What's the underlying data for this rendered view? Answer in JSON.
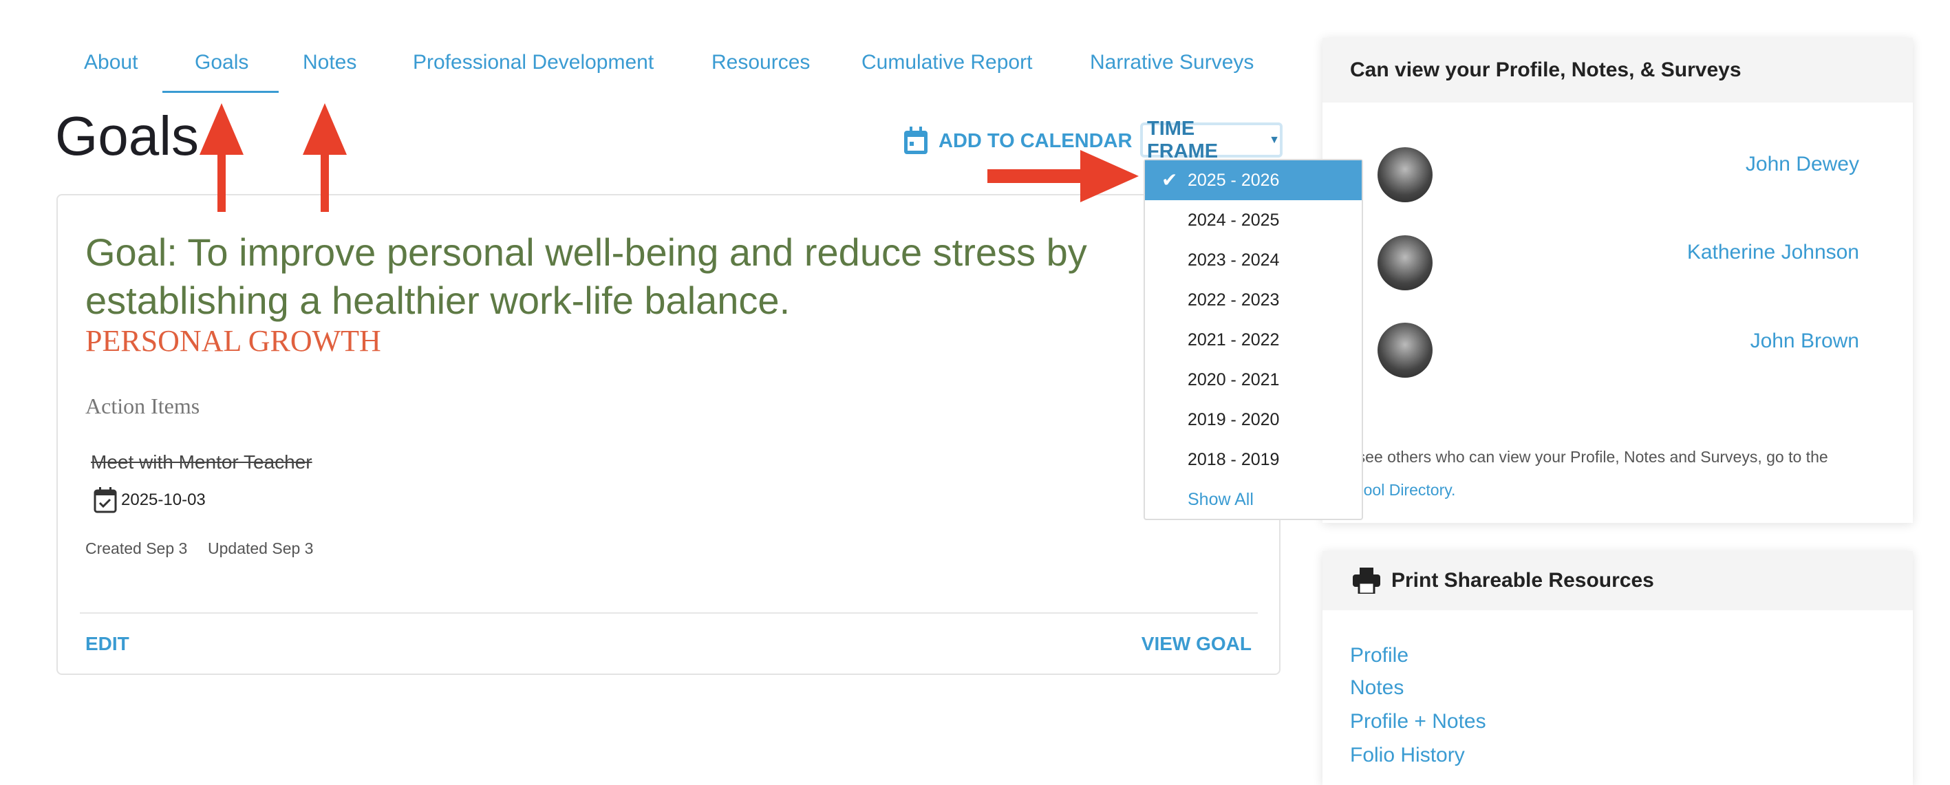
{
  "tabs": [
    {
      "label": "About"
    },
    {
      "label": "Goals",
      "active": true
    },
    {
      "label": "Notes"
    },
    {
      "label": "Professional Development"
    },
    {
      "label": "Resources"
    },
    {
      "label": "Cumulative Report"
    },
    {
      "label": "Narrative Surveys"
    }
  ],
  "page_title": "Goals",
  "toolbar": {
    "add_to_calendar": "ADD TO CALENDAR",
    "time_frame": "TIME FRAME"
  },
  "time_frame_options": [
    "2025 - 2026",
    "2024 - 2025",
    "2023 - 2024",
    "2022 - 2023",
    "2021 - 2022",
    "2020 - 2021",
    "2019 - 2020",
    "2018 - 2019"
  ],
  "time_frame_selected": "2025 - 2026",
  "show_all": "Show All",
  "goal": {
    "title": "Goal: To improve personal well-being and reduce stress by establishing a healthier work-life balance.",
    "category": "PERSONAL GROWTH",
    "action_items_label": "Action Items",
    "action_item": "Meet with Mentor Teacher",
    "action_item_date": "2025-10-03",
    "created": "Created Sep 3",
    "updated": "Updated Sep 3",
    "edit": "EDIT",
    "view": "VIEW GOAL"
  },
  "viewers": {
    "title": "Can view your Profile, Notes, & Surveys",
    "people": [
      "John Dewey",
      "Katherine Johnson",
      "John Brown"
    ],
    "note": "To see others who can view your Profile, Notes and Surveys, go to the",
    "note_link": "School Directory"
  },
  "print": {
    "title": "Print Shareable Resources",
    "links": [
      "Profile",
      "Notes",
      "Profile + Notes",
      "Folio History"
    ]
  },
  "colors": {
    "accent": "#3a9bd2",
    "goal_title": "#5e7a45",
    "category": "#e0603e",
    "arrow": "#e8402a"
  }
}
